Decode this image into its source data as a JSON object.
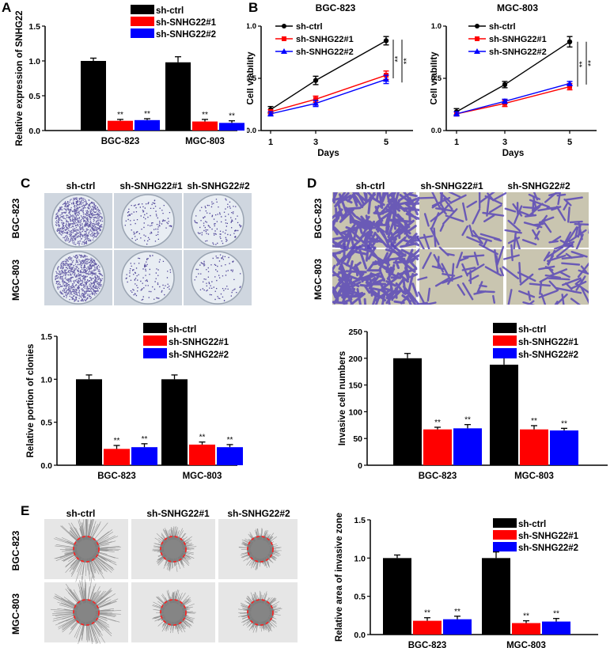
{
  "panels": {
    "A": "A",
    "B": "B",
    "C": "C",
    "D": "D",
    "E": "E"
  },
  "groups": {
    "ctrl": "sh-ctrl",
    "s1": "sh-SNHG22#1",
    "s2": "sh-SNHG22#2"
  },
  "cell_lines": {
    "bgc": "BGC-823",
    "mgc": "MGC-803"
  },
  "colors": {
    "ctrl": "#000000",
    "s1": "#ff0000",
    "s2": "#0000ff",
    "dish_bg": "#d4dbe4",
    "colony": "#3b2d8c",
    "purple": "#5a48b8",
    "ring": "#ff2020"
  },
  "significance": "**",
  "chart_data": [
    {
      "id": "A",
      "type": "bar",
      "title": "",
      "xlabel": "",
      "ylabel": "Relative expression of SNHG22",
      "categories": [
        "BGC-823",
        "MGC-803"
      ],
      "series": [
        {
          "name": "sh-ctrl",
          "values": [
            1.0,
            0.98
          ],
          "errors": [
            0.04,
            0.08
          ],
          "sig": [
            "",
            ""
          ]
        },
        {
          "name": "sh-SNHG22#1",
          "values": [
            0.14,
            0.13
          ],
          "errors": [
            0.02,
            0.03
          ],
          "sig": [
            "**",
            "**"
          ]
        },
        {
          "name": "sh-SNHG22#2",
          "values": [
            0.15,
            0.11
          ],
          "errors": [
            0.02,
            0.03
          ],
          "sig": [
            "**",
            "**"
          ]
        }
      ],
      "ylim": [
        0,
        1.5
      ],
      "yticks": [
        "0.0",
        "0.5",
        "1.0",
        "1.5"
      ],
      "legend": "top-right"
    },
    {
      "id": "B1",
      "type": "line",
      "title": "BGC-823",
      "xlabel": "Days",
      "ylabel": "Cell viability",
      "x": [
        1,
        3,
        5
      ],
      "xticks": [
        "1",
        "3",
        "5"
      ],
      "series": [
        {
          "name": "sh-ctrl",
          "values": [
            0.2,
            0.48,
            0.86
          ],
          "errors": [
            0.03,
            0.04,
            0.04
          ]
        },
        {
          "name": "sh-SNHG22#1",
          "values": [
            0.18,
            0.3,
            0.53
          ],
          "errors": [
            0.02,
            0.03,
            0.04
          ]
        },
        {
          "name": "sh-SNHG22#2",
          "values": [
            0.16,
            0.26,
            0.49
          ],
          "errors": [
            0.02,
            0.03,
            0.04
          ]
        }
      ],
      "ylim": [
        0,
        1.0
      ],
      "yticks": [
        "0.0",
        "0.5",
        "1.0"
      ],
      "brackets": [
        "**",
        "**"
      ],
      "legend": "top-left"
    },
    {
      "id": "B2",
      "type": "line",
      "title": "MGC-803",
      "xlabel": "Days",
      "ylabel": "Cell viability",
      "x": [
        1,
        3,
        5
      ],
      "xticks": [
        "1",
        "3",
        "5"
      ],
      "series": [
        {
          "name": "sh-ctrl",
          "values": [
            0.18,
            0.44,
            0.85
          ],
          "errors": [
            0.03,
            0.03,
            0.05
          ]
        },
        {
          "name": "sh-SNHG22#1",
          "values": [
            0.16,
            0.26,
            0.42
          ],
          "errors": [
            0.02,
            0.03,
            0.03
          ]
        },
        {
          "name": "sh-SNHG22#2",
          "values": [
            0.16,
            0.28,
            0.45
          ],
          "errors": [
            0.02,
            0.02,
            0.02
          ]
        }
      ],
      "ylim": [
        0,
        1.0
      ],
      "yticks": [
        "0.0",
        "0.5",
        "1.0"
      ],
      "brackets": [
        "**",
        "**"
      ],
      "legend": "top-left"
    },
    {
      "id": "C",
      "type": "bar",
      "title": "",
      "xlabel": "",
      "ylabel": "Relative portion of clonies",
      "categories": [
        "BGC-823",
        "MGC-803"
      ],
      "series": [
        {
          "name": "sh-ctrl",
          "values": [
            1.0,
            1.0
          ],
          "errors": [
            0.05,
            0.05
          ],
          "sig": [
            "",
            ""
          ]
        },
        {
          "name": "sh-SNHG22#1",
          "values": [
            0.19,
            0.24
          ],
          "errors": [
            0.04,
            0.03
          ],
          "sig": [
            "**",
            "**"
          ]
        },
        {
          "name": "sh-SNHG22#2",
          "values": [
            0.21,
            0.21
          ],
          "errors": [
            0.04,
            0.03
          ],
          "sig": [
            "**",
            "**"
          ]
        }
      ],
      "ylim": [
        0,
        1.5
      ],
      "yticks": [
        "0.0",
        "0.5",
        "1.0",
        "1.5"
      ],
      "legend": "top-right"
    },
    {
      "id": "D",
      "type": "bar",
      "title": "",
      "xlabel": "",
      "ylabel": "Invasive cell numbers",
      "categories": [
        "BGC-823",
        "MGC-803"
      ],
      "series": [
        {
          "name": "sh-ctrl",
          "values": [
            200,
            188
          ],
          "errors": [
            9,
            15
          ],
          "sig": [
            "",
            ""
          ]
        },
        {
          "name": "sh-SNHG22#1",
          "values": [
            67,
            67
          ],
          "errors": [
            4,
            7
          ],
          "sig": [
            "**",
            "**"
          ]
        },
        {
          "name": "sh-SNHG22#2",
          "values": [
            69,
            65
          ],
          "errors": [
            7,
            4
          ],
          "sig": [
            "**",
            "**"
          ]
        }
      ],
      "ylim": [
        0,
        250
      ],
      "yticks": [
        "0",
        "50",
        "100",
        "150",
        "200",
        "250"
      ],
      "legend": "top-right"
    },
    {
      "id": "E",
      "type": "bar",
      "title": "",
      "xlabel": "",
      "ylabel": "Relative area of invasive zone",
      "categories": [
        "BGC-823",
        "MGC-803"
      ],
      "series": [
        {
          "name": "sh-ctrl",
          "values": [
            1.0,
            1.0
          ],
          "errors": [
            0.04,
            0.08
          ],
          "sig": [
            "",
            ""
          ]
        },
        {
          "name": "sh-SNHG22#1",
          "values": [
            0.18,
            0.15
          ],
          "errors": [
            0.04,
            0.03
          ],
          "sig": [
            "**",
            "**"
          ]
        },
        {
          "name": "sh-SNHG22#2",
          "values": [
            0.2,
            0.17
          ],
          "errors": [
            0.04,
            0.04
          ],
          "sig": [
            "**",
            "**"
          ]
        }
      ],
      "ylim": [
        0,
        1.5
      ],
      "yticks": [
        "0.0",
        "0.5",
        "1.0",
        "1.5"
      ],
      "legend": "top-right"
    }
  ]
}
